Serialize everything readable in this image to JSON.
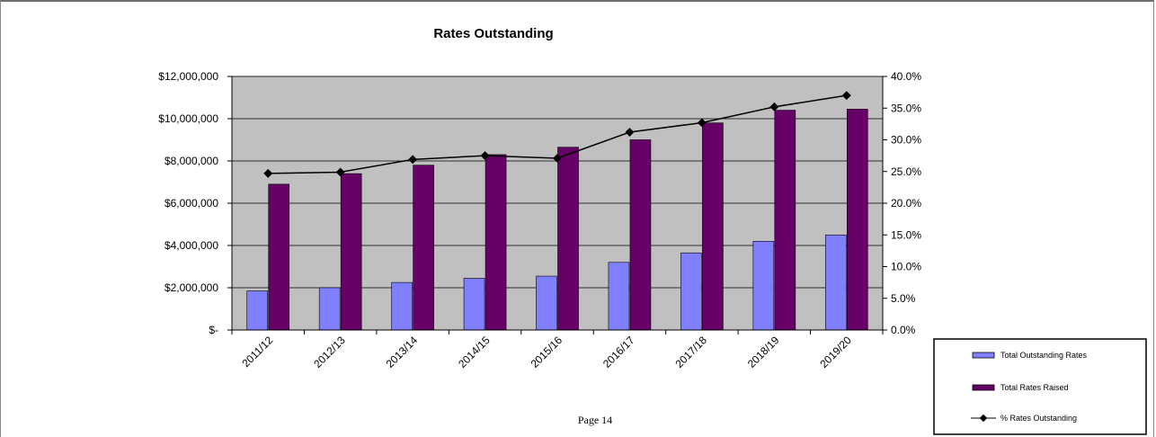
{
  "page": {
    "footer": "Page 14"
  },
  "colors": {
    "plot_bg": "#c0c0c0",
    "outstanding": "#8080ff",
    "raised": "#660066",
    "line": "#000000"
  },
  "chart_data": {
    "type": "bar",
    "title": "Rates Outstanding",
    "categories": [
      "2011/12",
      "2012/13",
      "2013/14",
      "2014/15",
      "2015/16",
      "2016/17",
      "2017/18",
      "2018/19",
      "2019/20"
    ],
    "series": [
      {
        "name": "Total Outstanding Rates",
        "kind": "bar",
        "axis": "left",
        "values": [
          1850000,
          2000000,
          2250000,
          2450000,
          2550000,
          3200000,
          3650000,
          4200000,
          4500000
        ]
      },
      {
        "name": "Total Rates Raised",
        "kind": "bar",
        "axis": "left",
        "values": [
          6900000,
          7400000,
          7800000,
          8300000,
          8650000,
          9000000,
          9800000,
          10400000,
          10450000
        ]
      },
      {
        "name": "% Rates Outstanding",
        "kind": "line",
        "axis": "right",
        "values": [
          24.7,
          24.9,
          26.9,
          27.5,
          27.1,
          31.2,
          32.7,
          35.2,
          37.0
        ]
      }
    ],
    "y_left": {
      "range": [
        0,
        12000000
      ],
      "ticks": [
        0,
        2000000,
        4000000,
        6000000,
        8000000,
        10000000,
        12000000
      ],
      "tick_labels": [
        "$-",
        "$2,000,000",
        "$4,000,000",
        "$6,000,000",
        "$8,000,000",
        "$10,000,000",
        "$12,000,000"
      ]
    },
    "y_right": {
      "range": [
        0,
        40
      ],
      "ticks": [
        0,
        5,
        10,
        15,
        20,
        25,
        30,
        35,
        40
      ],
      "tick_labels": [
        "0.0%",
        "5.0%",
        "10.0%",
        "15.0%",
        "20.0%",
        "25.0%",
        "30.0%",
        "35.0%",
        "40.0%"
      ]
    },
    "grid": true,
    "legend": "bottom-right"
  }
}
